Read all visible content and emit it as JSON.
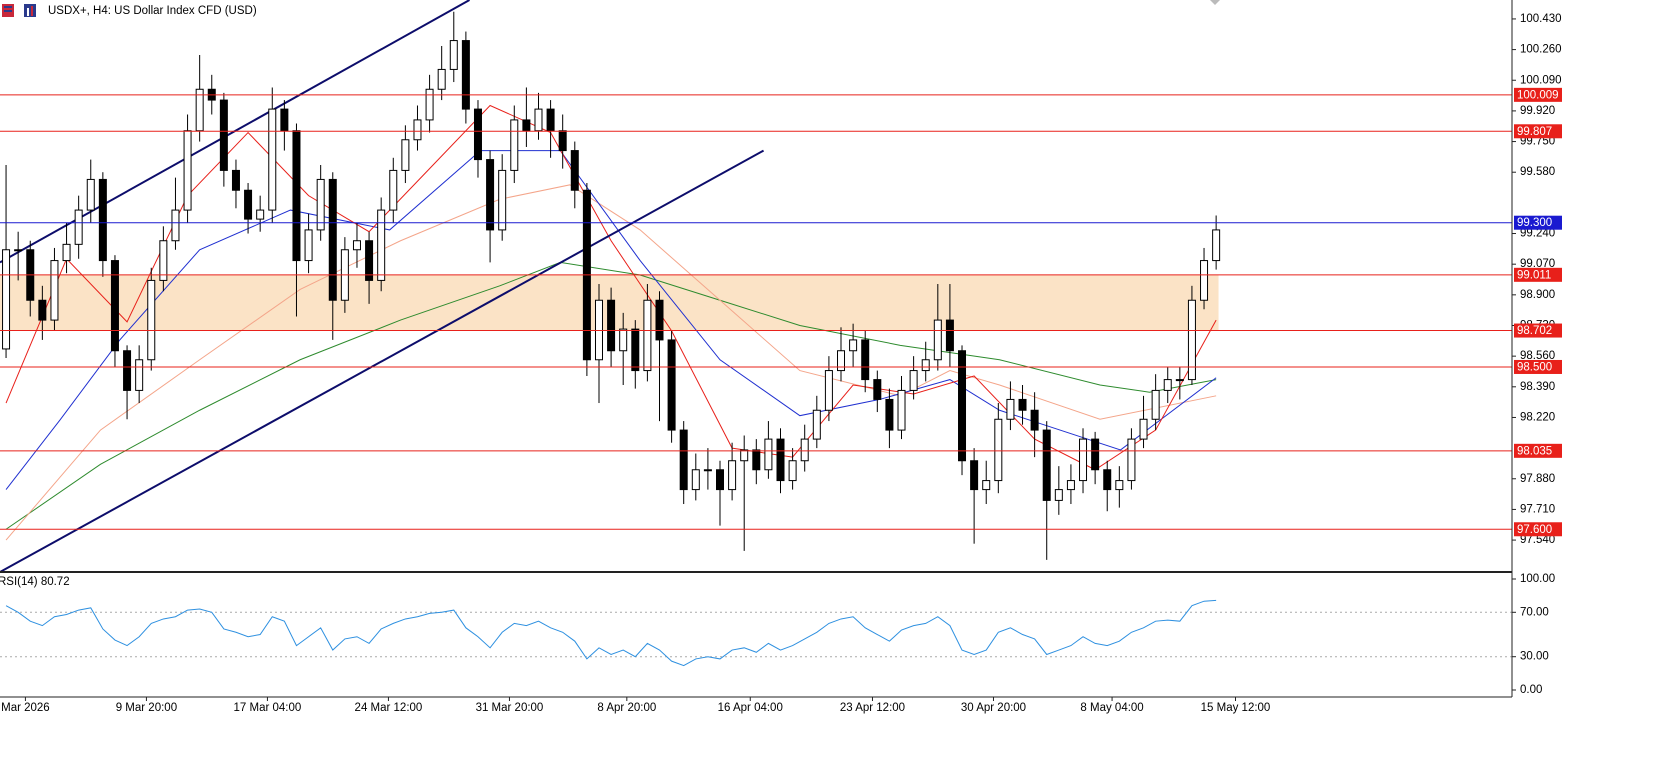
{
  "chart_data": [
    {
      "type": "candlestick",
      "title": "USDX+, H4:  US Dollar Index CFD (USD)",
      "up_color": "#ffffff",
      "down_color": "#000000",
      "xlim": [
        -0.5,
        124.45
      ],
      "ylim": [
        97.363,
        100.535
      ],
      "open": [
        98.6,
        99.15,
        99.15,
        98.87,
        98.76,
        99.09,
        99.18,
        99.37,
        99.54,
        99.09,
        98.59,
        98.37,
        98.54,
        98.98,
        99.2,
        99.37,
        99.81,
        100.04,
        99.98,
        99.59,
        99.48,
        99.32,
        99.37,
        99.93,
        99.81,
        99.09,
        99.26,
        99.54,
        98.87,
        99.15,
        99.2,
        98.98,
        99.37,
        99.59,
        99.76,
        99.87,
        100.04,
        100.15,
        100.31,
        99.93,
        99.65,
        99.26,
        99.59,
        99.87,
        99.81,
        99.93,
        99.81,
        99.7,
        99.48,
        98.54,
        98.87,
        98.59,
        98.71,
        98.48,
        98.87,
        98.65,
        98.15,
        97.82,
        97.93,
        97.93,
        97.82,
        97.98,
        98.04,
        97.93,
        98.1,
        97.87,
        97.98,
        98.1,
        98.26,
        98.48,
        98.59,
        98.65,
        98.43,
        98.32,
        98.15,
        98.37,
        98.48,
        98.54,
        98.76,
        98.59,
        97.98,
        97.82,
        97.87,
        98.21,
        98.32,
        98.26,
        98.15,
        97.76,
        97.82,
        97.87,
        98.1,
        97.93,
        97.82,
        97.87,
        98.1,
        98.21,
        98.37,
        98.43,
        98.43,
        98.87,
        99.09
      ],
      "high": [
        99.62,
        99.25,
        99.2,
        98.95,
        99.16,
        99.3,
        99.45,
        99.65,
        99.58,
        99.12,
        98.62,
        98.62,
        99.05,
        99.28,
        99.55,
        99.9,
        100.23,
        100.12,
        100.02,
        99.65,
        99.52,
        99.45,
        100.05,
        99.98,
        99.85,
        99.35,
        99.62,
        99.58,
        99.22,
        99.3,
        99.25,
        99.44,
        99.66,
        99.84,
        99.95,
        100.12,
        100.28,
        100.47,
        100.36,
        99.98,
        99.7,
        99.68,
        99.95,
        100.05,
        100.02,
        99.98,
        99.9,
        99.75,
        99.52,
        98.96,
        98.94,
        98.8,
        98.76,
        98.96,
        98.92,
        98.7,
        98.2,
        98.02,
        98.05,
        97.98,
        98.08,
        98.12,
        98.1,
        98.2,
        98.16,
        98.05,
        98.18,
        98.34,
        98.56,
        98.72,
        98.74,
        98.7,
        98.48,
        98.38,
        98.45,
        98.56,
        98.64,
        98.96,
        98.96,
        98.62,
        98.05,
        97.98,
        98.3,
        98.42,
        98.4,
        98.36,
        98.2,
        97.95,
        97.96,
        98.16,
        98.14,
        97.98,
        97.95,
        98.16,
        98.34,
        98.46,
        98.5,
        98.5,
        98.95,
        99.16,
        99.34
      ],
      "low": [
        98.55,
        98.98,
        98.78,
        98.65,
        98.7,
        99.02,
        99.1,
        99.3,
        99.0,
        98.5,
        98.21,
        98.3,
        98.48,
        98.92,
        99.15,
        99.3,
        99.75,
        99.9,
        99.5,
        99.38,
        99.24,
        99.25,
        99.3,
        99.7,
        98.78,
        99.02,
        99.2,
        98.65,
        98.8,
        99.05,
        98.85,
        98.92,
        99.3,
        99.52,
        99.7,
        99.8,
        99.98,
        100.08,
        99.85,
        99.55,
        99.08,
        99.2,
        99.52,
        99.72,
        99.76,
        99.66,
        99.6,
        99.38,
        98.45,
        98.3,
        98.5,
        98.4,
        98.38,
        98.42,
        98.2,
        98.08,
        97.74,
        97.76,
        97.82,
        97.62,
        97.76,
        97.48,
        97.85,
        97.88,
        97.8,
        97.82,
        97.92,
        98.05,
        98.2,
        98.42,
        98.5,
        98.36,
        98.25,
        98.05,
        98.1,
        98.32,
        98.42,
        98.48,
        98.5,
        97.9,
        97.52,
        97.74,
        97.8,
        98.15,
        98.18,
        98.0,
        97.43,
        97.68,
        97.74,
        97.8,
        97.85,
        97.7,
        97.72,
        97.82,
        98.05,
        98.15,
        98.3,
        98.32,
        98.4,
        98.82,
        99.04
      ],
      "close": [
        99.15,
        99.15,
        98.87,
        98.76,
        99.09,
        99.18,
        99.37,
        99.54,
        99.09,
        98.59,
        98.37,
        98.54,
        98.98,
        99.2,
        99.37,
        99.81,
        100.04,
        99.98,
        99.59,
        99.48,
        99.32,
        99.37,
        99.93,
        99.81,
        99.09,
        99.26,
        99.54,
        98.87,
        99.15,
        99.2,
        98.98,
        99.37,
        99.59,
        99.76,
        99.87,
        100.04,
        100.15,
        100.31,
        99.93,
        99.65,
        99.26,
        99.59,
        99.87,
        99.81,
        99.93,
        99.81,
        99.7,
        99.48,
        98.54,
        98.87,
        98.59,
        98.71,
        98.48,
        98.87,
        98.65,
        98.15,
        97.82,
        97.93,
        97.93,
        97.82,
        97.98,
        98.04,
        97.93,
        98.1,
        97.87,
        97.98,
        98.1,
        98.26,
        98.48,
        98.59,
        98.65,
        98.43,
        98.32,
        98.15,
        98.37,
        98.48,
        98.54,
        98.76,
        98.59,
        97.98,
        97.82,
        97.87,
        98.21,
        98.32,
        98.26,
        98.15,
        97.76,
        97.82,
        97.87,
        98.1,
        97.93,
        97.82,
        97.87,
        98.1,
        98.21,
        98.37,
        98.43,
        98.43,
        98.87,
        99.09,
        99.26
      ],
      "series": [
        {
          "color": "#2e8b2e",
          "x": [
            0,
            7.8,
            16,
            24.3,
            32.6,
            40.8,
            45.8,
            52.4,
            59,
            65.6,
            73.9,
            82.1,
            90.4,
            94.5,
            100
          ],
          "values": [
            97.6,
            97.96,
            98.26,
            98.54,
            98.76,
            98.95,
            99.08,
            99.01,
            98.87,
            98.73,
            98.62,
            98.54,
            98.4,
            98.36,
            98.43
          ]
        },
        {
          "color": "#f4a58a",
          "x": [
            0,
            7.8,
            16,
            24.3,
            32.6,
            40.8,
            46.6,
            52.4,
            59,
            65.6,
            73.9,
            78,
            82.1,
            90.4,
            100
          ],
          "values": [
            97.54,
            98.15,
            98.54,
            98.93,
            99.2,
            99.43,
            99.51,
            99.26,
            98.87,
            98.48,
            98.34,
            98.48,
            98.4,
            98.21,
            98.34
          ]
        },
        {
          "color": "#2030d0",
          "x": [
            0,
            4.5,
            9.4,
            16,
            23.5,
            31.7,
            39.2,
            45.8,
            52.4,
            59,
            65.6,
            72.2,
            78,
            82.1,
            87.1,
            92.1,
            100
          ],
          "values": [
            97.82,
            98.21,
            98.65,
            99.15,
            99.37,
            99.26,
            99.7,
            99.7,
            99.09,
            98.54,
            98.23,
            98.32,
            98.43,
            98.26,
            98.15,
            98.04,
            98.44
          ]
        },
        {
          "color": "#e8201a",
          "x": [
            0,
            5,
            10,
            15,
            20,
            25,
            30,
            35,
            40,
            45,
            50,
            55,
            60,
            65,
            70,
            75,
            80,
            85,
            90,
            95,
            100
          ],
          "values": [
            98.3,
            99.1,
            98.75,
            99.45,
            99.8,
            99.45,
            99.25,
            99.6,
            99.95,
            99.8,
            99.2,
            98.7,
            98.05,
            98.0,
            98.4,
            98.35,
            98.45,
            98.1,
            97.93,
            98.15,
            98.76
          ]
        }
      ],
      "zone": {
        "from": 98.702,
        "to": 99.011,
        "x": [
          -0.5,
          100.2
        ],
        "color": "#fbe3c6"
      },
      "trendlines": [
        {
          "color": "#0d0d6b",
          "x": [
            -0.5,
            38.3
          ],
          "y": [
            99.08,
            100.535
          ]
        },
        {
          "color": "#0d0d6b",
          "x": [
            -0.5,
            62.6
          ],
          "y": [
            97.363,
            99.7
          ]
        }
      ],
      "hlines": [
        {
          "value": 100.009,
          "label": "100.009",
          "color": "#e8201a"
        },
        {
          "value": 99.807,
          "label": "99.807",
          "color": "#e8201a"
        },
        {
          "value": 99.3,
          "label": "99.300",
          "color": "#1a1ad0"
        },
        {
          "value": 99.011,
          "label": "99.011",
          "color": "#e8201a"
        },
        {
          "value": 98.702,
          "label": "98.702",
          "color": "#e8201a"
        },
        {
          "value": 98.5,
          "label": "98.500",
          "color": "#e8201a"
        },
        {
          "value": 98.035,
          "label": "98.035",
          "color": "#e8201a"
        },
        {
          "value": 97.6,
          "label": "97.600",
          "color": "#e8201a"
        }
      ],
      "yticks": [
        {
          "value": 100.43,
          "label": "100.430"
        },
        {
          "value": 100.26,
          "label": "100.260"
        },
        {
          "value": 100.09,
          "label": "100.090"
        },
        {
          "value": 99.92,
          "label": "99.920"
        },
        {
          "value": 99.75,
          "label": "99.750"
        },
        {
          "value": 99.58,
          "label": "99.580"
        },
        {
          "value": 99.24,
          "label": "99.240"
        },
        {
          "value": 99.07,
          "label": "99.070"
        },
        {
          "value": 98.9,
          "label": "98.900"
        },
        {
          "value": 98.73,
          "label": "98.730"
        },
        {
          "value": 98.56,
          "label": "98.560"
        },
        {
          "value": 98.39,
          "label": "98.390"
        },
        {
          "value": 98.22,
          "label": "98.220"
        },
        {
          "value": 97.88,
          "label": "97.880"
        },
        {
          "value": 97.71,
          "label": "97.710"
        },
        {
          "value": 97.54,
          "label": "97.540"
        }
      ],
      "xticks": [
        {
          "value": 1.6,
          "label": "Mar 2026"
        },
        {
          "value": 11.6,
          "label": "9 Mar 20:00"
        },
        {
          "value": 21.6,
          "label": "17 Mar 04:00"
        },
        {
          "value": 31.6,
          "label": "24 Mar 12:00"
        },
        {
          "value": 41.6,
          "label": "31 Mar 20:00"
        },
        {
          "value": 51.3,
          "label": "8 Apr 20:00"
        },
        {
          "value": 61.5,
          "label": "16 Apr 04:00"
        },
        {
          "value": 71.6,
          "label": "23 Apr 12:00"
        },
        {
          "value": 81.6,
          "label": "30 Apr 20:00"
        },
        {
          "value": 91.4,
          "label": "8 May 04:00"
        },
        {
          "value": 101.6,
          "label": "15 May 12:00"
        }
      ]
    },
    {
      "type": "line",
      "title": "RSI(14) 80.72",
      "color": "#2e90e0",
      "ylim": [
        -6.3,
        104.5
      ],
      "yticks": [
        {
          "value": 100,
          "label": "100.00"
        },
        {
          "value": 70,
          "label": "70.00"
        },
        {
          "value": 30,
          "label": "30.00"
        },
        {
          "value": 0,
          "label": "0.00"
        }
      ],
      "levels": [
        70,
        30
      ],
      "values": [
        76,
        70,
        62,
        58,
        66,
        68,
        72,
        74,
        55,
        45,
        40,
        48,
        60,
        64,
        66,
        72,
        73,
        70,
        55,
        52,
        48,
        50,
        66,
        62,
        40,
        48,
        56,
        36,
        46,
        48,
        42,
        55,
        60,
        64,
        66,
        69,
        70,
        72,
        56,
        48,
        38,
        52,
        60,
        58,
        62,
        56,
        52,
        44,
        28,
        38,
        32,
        36,
        30,
        42,
        36,
        26,
        22,
        28,
        30,
        28,
        36,
        38,
        34,
        42,
        36,
        40,
        46,
        52,
        60,
        64,
        66,
        56,
        50,
        44,
        54,
        58,
        60,
        66,
        58,
        36,
        32,
        36,
        52,
        56,
        50,
        46,
        32,
        36,
        40,
        48,
        42,
        40,
        44,
        52,
        56,
        62,
        63,
        62,
        76,
        80,
        80.72
      ]
    }
  ]
}
